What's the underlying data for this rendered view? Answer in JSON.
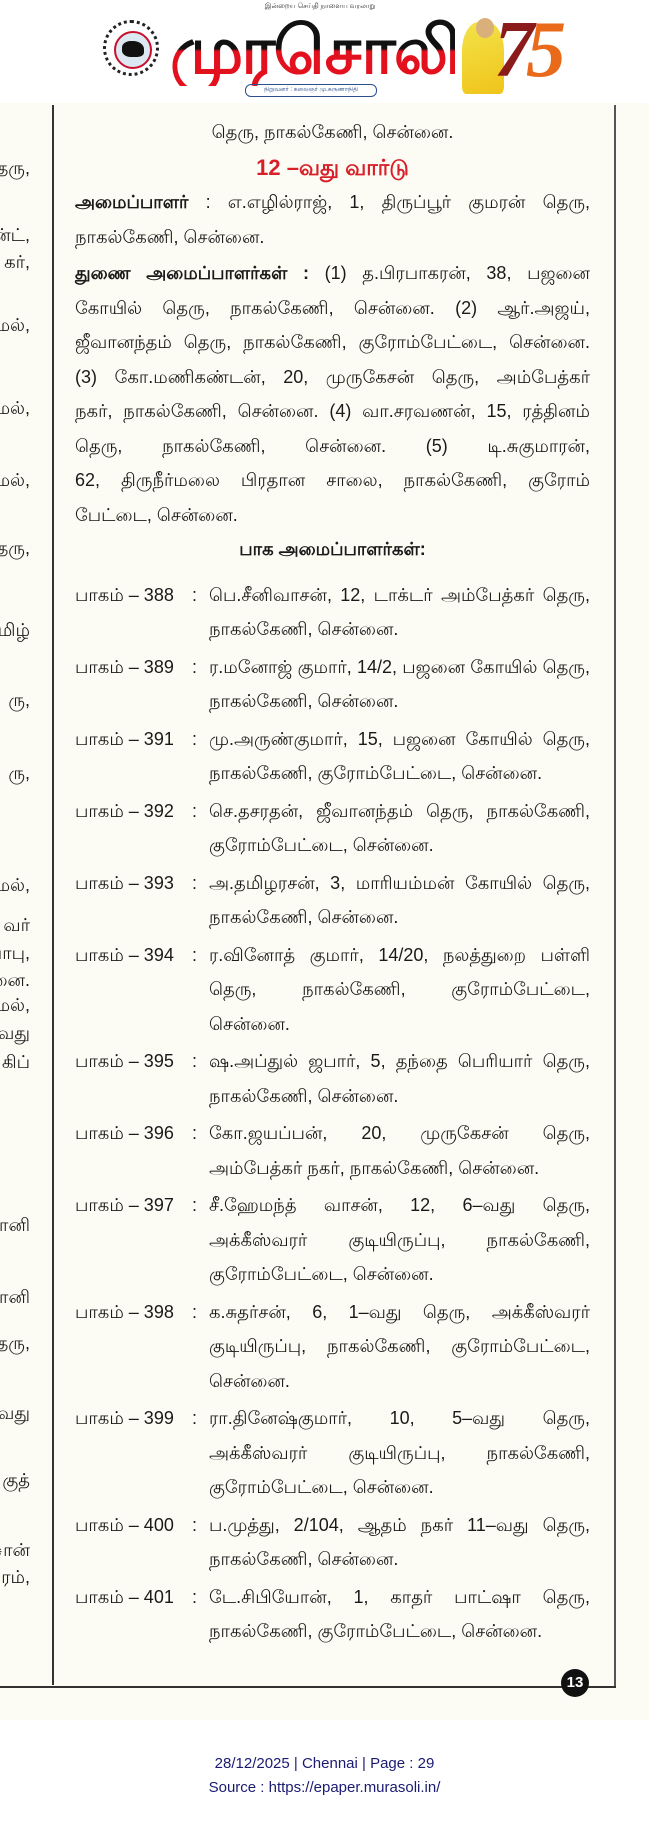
{
  "masthead": {
    "tagline": "இன்றைய செய்தி நாளைய வரலாறு",
    "brand": "முரசொலி",
    "brand_sub": "நிறுவனர் : கலைஞர் மு.கருணாநிதி",
    "anniversary": "75",
    "colors": {
      "brand_top": "#111111",
      "brand_bottom": "#e3101e",
      "anniversary": "#8b1a1a"
    }
  },
  "left_column_fragments": [
    "தரு,",
    "ன்ட்,",
    "கர்,",
    "மல்,",
    "மல்,",
    "மல்,",
    "தரு,",
    "மிழ்",
    "ரு,",
    "ரு,",
    "மல்,",
    "வர்",
    "பாபு,",
    "னை.",
    "மல்,",
    "வது",
    "கிப்",
    "ானி",
    "ானி",
    "தரு,",
    "வது",
    "குத்",
    "ான்",
    "ரம்,"
  ],
  "article": {
    "cut_line": "தெரு, நாகல்கேணி, சென்னை.",
    "ward_heading": "12 –வது வார்டு",
    "ward_heading_color": "#d8202a",
    "organizer": {
      "label": "அமைப்பாளர்",
      "lines": [
        " : எ.எழில்ராஜ், 1, திருப்பூர் குமரன் தெரு,",
        "நாகல்கேணி, சென்னை."
      ]
    },
    "deputies": {
      "label": "துணை அமைப்பாளர்கள் :",
      "lines": [
        " (1) த.பிரபாகரன், 38, பஜனை",
        "கோயில் தெரு, நாகல்கேணி, சென்னை. (2) ஆர்.அஜய்,",
        "ஜீவானந்தம் தெரு, நாகல்கேணி, குரோம்பேட்டை, சென்னை.",
        "(3) கோ.மணிகண்டன், 20, முருகேசன் தெரு, அம்பேத்கர்",
        "நகர், நாகல்கேணி, சென்னை. (4) வா.சரவணன், 15, ரத்தினம்",
        "தெரு, நாகல்கேணி, சென்னை. (5) டி.சுகுமாரன்,",
        "62, திருநீர்மலை பிரதான சாலை, நாகல்கேணி, குரோம்",
        "பேட்டை, சென்னை."
      ]
    },
    "booth_heading": "பாக அமைப்பாளர்கள்:",
    "booths": [
      {
        "label": "பாகம் – 388",
        "lines": [
          "பெ.சீனிவாசன், 12, டாக்டர் அம்பேத்கர் தெரு,",
          "நாகல்கேணி, சென்னை."
        ]
      },
      {
        "label": "பாகம் – 389",
        "lines": [
          "ர.மனோஜ் குமார், 14/2, பஜனை கோயில் தெரு,",
          "நாகல்கேணி, சென்னை."
        ]
      },
      {
        "label": "பாகம் – 391",
        "lines": [
          "மு.அருண்குமார், 15, பஜனை கோயில் தெரு,",
          "நாகல்கேணி, குரோம்பேட்டை, சென்னை."
        ]
      },
      {
        "label": "பாகம் – 392",
        "lines": [
          "செ.தசரதன், ஜீவானந்தம் தெரு, நாகல்கேணி,",
          "குரோம்பேட்டை, சென்னை."
        ]
      },
      {
        "label": "பாகம் – 393",
        "lines": [
          "அ.தமிழரசன், 3, மாரியம்மன் கோயில் தெரு,",
          "நாகல்கேணி, சென்னை."
        ]
      },
      {
        "label": "பாகம் – 394",
        "lines": [
          "ர.வினோத் குமார், 14/20, நலத்துறை பள்ளி",
          "தெரு, நாகல்கேணி, குரோம்பேட்டை,",
          "சென்னை."
        ]
      },
      {
        "label": "பாகம் – 395",
        "lines": [
          "ஷ.அப்துல் ஜபார், 5, தந்தை பெரியார் தெரு,",
          "நாகல்கேணி, சென்னை."
        ]
      },
      {
        "label": "பாகம் – 396",
        "lines": [
          "கோ.ஜயப்பன், 20, முருகேசன் தெரு,",
          "அம்பேத்கர் நகர், நாகல்கேணி, சென்னை."
        ]
      },
      {
        "label": "பாகம் – 397",
        "lines": [
          "சீ.ஹேமந்த் வாசன், 12, 6–வது தெரு,",
          "அக்கீஸ்வரர் குடியிருப்பு, நாகல்கேணி,",
          "குரோம்பேட்டை, சென்னை."
        ]
      },
      {
        "label": "பாகம் – 398",
        "lines": [
          "க.சுதர்சன், 6, 1–வது தெரு, அக்கீஸ்வரர்",
          "குடியிருப்பு, நாகல்கேணி, குரோம்பேட்டை,",
          "சென்னை."
        ]
      },
      {
        "label": "பாகம் – 399",
        "lines": [
          "ரா.தினேஷ்குமார், 10, 5–வது தெரு,",
          "அக்கீஸ்வரர் குடியிருப்பு, நாகல்கேணி,",
          "குரோம்பேட்டை, சென்னை."
        ]
      },
      {
        "label": "பாகம் – 400",
        "lines": [
          "ப.முத்து, 2/104, ஆதம் நகர் 11–வது தெரு,",
          "நாகல்கேணி, சென்னை."
        ]
      },
      {
        "label": "பாகம் – 401",
        "lines": [
          "டே.சிபியோன், 1, காதர் பாட்ஷா தெரு,",
          "நாகல்கேணி, குரோம்பேட்டை, சென்னை."
        ]
      }
    ],
    "colon": ":",
    "page_badge": "13"
  },
  "footer": {
    "line1": "28/12/2025 | Chennai | Page : 29",
    "line2": "Source : https://epaper.murasoli.in/",
    "color": "#1b1b72"
  }
}
